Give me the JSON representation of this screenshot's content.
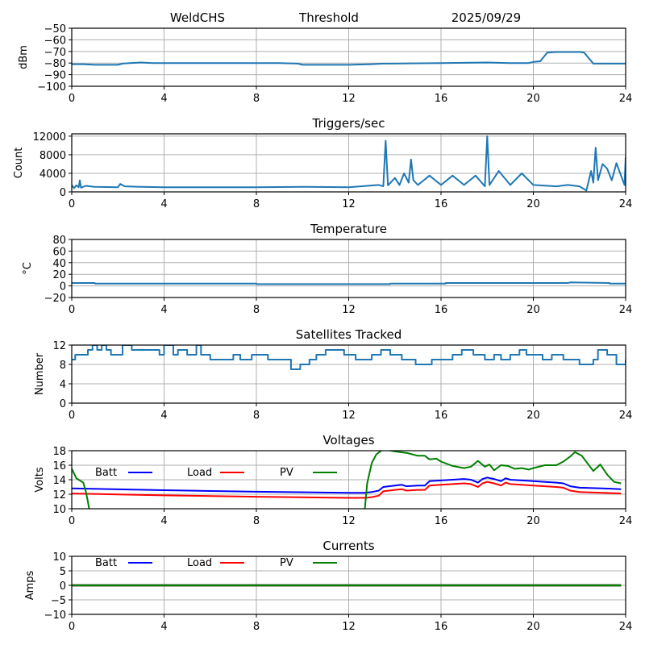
{
  "header": {
    "station": "WeldCHS",
    "mode": "Threshold",
    "date": "2025/09/29"
  },
  "colors": {
    "series_default": "#1f77b4",
    "batt": "#0000ff",
    "load": "#ff0000",
    "pv": "#008000"
  },
  "chart_data": [
    {
      "id": "signal",
      "type": "line",
      "title": "",
      "xlabel": "",
      "ylabel": "dBm",
      "xlim": [
        0,
        24
      ],
      "ylim": [
        -100,
        -50
      ],
      "xticks": [
        0,
        4,
        8,
        12,
        16,
        20,
        24
      ],
      "yticks": [
        -100,
        -90,
        -80,
        -70,
        -60,
        -50
      ],
      "ytick_labels": [
        "−100",
        "−90",
        "−80",
        "−70",
        "−60",
        "−50"
      ],
      "grid": true,
      "series": [
        {
          "name": "signal",
          "color": "#1f77b4",
          "x": [
            0,
            0.5,
            1,
            2,
            2.2,
            2.5,
            3,
            3.5,
            4,
            6,
            8,
            9,
            9.8,
            10,
            11,
            12,
            13,
            13.5,
            14,
            16,
            18,
            19,
            19.8,
            20,
            20.3,
            20.6,
            21,
            21.5,
            22,
            22.2,
            22.6,
            23,
            24
          ],
          "y": [
            -81,
            -81,
            -81.5,
            -81.5,
            -80.5,
            -80,
            -79.5,
            -80,
            -80,
            -80,
            -80,
            -80,
            -80.5,
            -81.5,
            -81.5,
            -81.5,
            -81,
            -80.5,
            -80.5,
            -80,
            -79.5,
            -80,
            -80,
            -79,
            -78.5,
            -71,
            -70.5,
            -70.5,
            -70.5,
            -71,
            -80.5,
            -80.5,
            -80.5
          ]
        }
      ]
    },
    {
      "id": "triggers",
      "type": "line",
      "title": "Triggers/sec",
      "xlabel": "",
      "ylabel": "Count",
      "xlim": [
        0,
        24
      ],
      "ylim": [
        0,
        12500
      ],
      "xticks": [
        0,
        4,
        8,
        12,
        16,
        20,
        24
      ],
      "yticks": [
        0,
        4000,
        8000,
        12000
      ],
      "grid": true,
      "series": [
        {
          "name": "triggers",
          "color": "#1f77b4",
          "x": [
            0,
            0.1,
            0.2,
            0.3,
            0.35,
            0.4,
            0.6,
            1,
            2,
            2.1,
            2.3,
            3,
            4,
            6,
            8,
            10,
            12,
            12.8,
            13.3,
            13.5,
            13.6,
            13.7,
            14,
            14.2,
            14.4,
            14.6,
            14.7,
            14.8,
            15,
            15.5,
            16,
            16.5,
            17,
            17.5,
            17.9,
            18,
            18.1,
            18.5,
            19,
            19.5,
            20,
            21,
            21.5,
            22,
            22.3,
            22.5,
            22.6,
            22.7,
            22.8,
            23,
            23.2,
            23.4,
            23.6,
            23.8,
            23.95,
            24
          ],
          "y": [
            1500,
            800,
            1400,
            1000,
            2500,
            900,
            1300,
            1100,
            1000,
            1700,
            1200,
            1100,
            1000,
            1000,
            1000,
            1100,
            1000,
            1300,
            1500,
            1200,
            11000,
            1400,
            3000,
            1500,
            4000,
            2000,
            7000,
            2500,
            1500,
            3500,
            1500,
            3500,
            1500,
            3500,
            1200,
            12000,
            1500,
            4500,
            1500,
            4000,
            1500,
            1200,
            1500,
            1200,
            300,
            4500,
            2000,
            9500,
            2500,
            6000,
            5000,
            2500,
            6200,
            3500,
            1500,
            7500
          ]
        }
      ]
    },
    {
      "id": "temperature",
      "type": "line",
      "title": "Temperature",
      "xlabel": "",
      "ylabel": "°C",
      "xlim": [
        0,
        24
      ],
      "ylim": [
        -20,
        80
      ],
      "xticks": [
        0,
        4,
        8,
        12,
        16,
        20,
        24
      ],
      "yticks": [
        -20,
        0,
        20,
        40,
        60,
        80
      ],
      "ytick_labels": [
        "−20",
        "0",
        "20",
        "40",
        "60",
        "80"
      ],
      "grid": true,
      "series": [
        {
          "name": "temperature",
          "color": "#1f77b4",
          "x": [
            0,
            1,
            1.01,
            8,
            8.01,
            13.8,
            13.81,
            16.2,
            16.21,
            21.5,
            21.6,
            23.3,
            23.31,
            24
          ],
          "y": [
            5,
            5,
            4,
            4,
            3,
            3,
            4,
            4,
            5,
            5,
            6,
            5,
            4,
            4
          ]
        }
      ]
    },
    {
      "id": "satellites",
      "type": "line",
      "title": "Satellites Tracked",
      "xlabel": "",
      "ylabel": "Number",
      "xlim": [
        0,
        24
      ],
      "ylim": [
        0,
        12
      ],
      "xticks": [
        0,
        4,
        8,
        12,
        16,
        20,
        24
      ],
      "yticks": [
        0,
        4,
        8,
        12
      ],
      "grid": true,
      "series": [
        {
          "name": "satellites",
          "color": "#1f77b4",
          "x": [
            0,
            0.15,
            0.4,
            0.7,
            0.9,
            1.1,
            1.3,
            1.5,
            1.7,
            2.2,
            2.6,
            3.4,
            3.8,
            4.0,
            4.4,
            4.6,
            4.8,
            5.0,
            5.4,
            5.6,
            6.0,
            6.6,
            7.0,
            7.3,
            7.8,
            8.2,
            8.5,
            9.0,
            9.5,
            9.9,
            10.3,
            10.6,
            11.0,
            11.8,
            12.3,
            12.6,
            13.0,
            13.4,
            13.8,
            14.3,
            14.9,
            15.3,
            15.6,
            16.0,
            16.5,
            16.9,
            17.4,
            17.9,
            18.3,
            18.6,
            19.0,
            19.4,
            19.7,
            20.0,
            20.4,
            20.8,
            21.3,
            21.6,
            22.0,
            22.6,
            22.8,
            23.2,
            23.6,
            24
          ],
          "y": [
            9,
            10,
            10,
            11,
            12,
            11,
            12,
            11,
            10,
            12,
            11,
            11,
            10,
            12,
            10,
            11,
            11,
            10,
            12,
            10,
            9,
            9,
            10,
            9,
            10,
            10,
            9,
            9,
            7,
            8,
            9,
            10,
            11,
            10,
            9,
            9,
            10,
            11,
            10,
            9,
            8,
            8,
            9,
            9,
            10,
            11,
            10,
            9,
            10,
            9,
            10,
            11,
            10,
            10,
            9,
            10,
            9,
            9,
            8,
            9,
            11,
            10,
            8,
            9
          ]
        }
      ]
    },
    {
      "id": "voltages",
      "type": "line",
      "title": "Voltages",
      "xlabel": "",
      "ylabel": "Volts",
      "xlim": [
        0,
        24
      ],
      "ylim": [
        10,
        18
      ],
      "xticks": [
        0,
        4,
        8,
        12,
        16,
        20,
        24
      ],
      "yticks": [
        10,
        12,
        14,
        16,
        18
      ],
      "grid": true,
      "legend": [
        "Batt",
        "Load",
        "PV"
      ],
      "legend_placement": "top-left-inline",
      "series": [
        {
          "name": "Batt",
          "color": "#0000ff",
          "x": [
            0,
            4,
            8,
            12,
            12.7,
            13,
            13.3,
            13.5,
            14,
            14.3,
            14.5,
            15,
            15.3,
            15.5,
            16,
            17,
            17.3,
            17.6,
            17.8,
            18,
            18.3,
            18.6,
            18.8,
            19,
            20,
            21,
            21.3,
            21.6,
            22,
            23,
            23.8
          ],
          "y": [
            12.8,
            12.55,
            12.35,
            12.2,
            12.2,
            12.3,
            12.5,
            13.0,
            13.2,
            13.3,
            13.1,
            13.2,
            13.2,
            13.8,
            13.9,
            14.1,
            14.0,
            13.6,
            14.1,
            14.3,
            14.1,
            13.8,
            14.2,
            14.0,
            13.8,
            13.6,
            13.5,
            13.1,
            12.9,
            12.8,
            12.7
          ]
        },
        {
          "name": "Load",
          "color": "#ff0000",
          "x": [
            0,
            4,
            8,
            12,
            12.7,
            13,
            13.3,
            13.5,
            14,
            14.3,
            14.5,
            15,
            15.3,
            15.5,
            16,
            17,
            17.3,
            17.6,
            17.8,
            18,
            18.3,
            18.6,
            18.8,
            19,
            20,
            21,
            21.3,
            21.6,
            22,
            23,
            23.8
          ],
          "y": [
            12.1,
            11.85,
            11.65,
            11.5,
            11.5,
            11.6,
            11.8,
            12.4,
            12.6,
            12.7,
            12.5,
            12.6,
            12.6,
            13.2,
            13.3,
            13.5,
            13.4,
            13.0,
            13.5,
            13.7,
            13.5,
            13.2,
            13.6,
            13.4,
            13.2,
            13.0,
            12.9,
            12.5,
            12.3,
            12.2,
            12.1
          ]
        },
        {
          "name": "PV",
          "color": "#008000",
          "segments": [
            {
              "x": [
                0,
                0.2,
                0.5,
                0.6,
                0.7,
                0.75
              ],
              "y": [
                15.5,
                14.2,
                13.6,
                12.5,
                11,
                10
              ]
            },
            {
              "x": [
                12.7,
                12.8,
                13.0,
                13.2,
                13.5,
                14,
                14.5,
                15,
                15.3,
                15.5,
                15.8,
                16,
                16.5,
                17,
                17.3,
                17.6,
                17.9,
                18.1,
                18.3,
                18.6,
                18.9,
                19.2,
                19.5,
                19.8,
                20,
                20.5,
                21,
                21.3,
                21.6,
                21.8,
                22.1,
                22.6,
                22.9,
                23.2,
                23.5,
                23.8
              ],
              "y": [
                10,
                13.5,
                16.3,
                17.5,
                18.2,
                17.9,
                17.7,
                17.3,
                17.3,
                16.8,
                16.9,
                16.5,
                15.9,
                15.6,
                15.8,
                16.6,
                15.8,
                16.1,
                15.3,
                16.0,
                15.9,
                15.5,
                15.6,
                15.4,
                15.6,
                16.0,
                16.0,
                16.5,
                17.2,
                17.8,
                17.3,
                15.2,
                16.1,
                14.7,
                13.7,
                13.5
              ]
            }
          ]
        }
      ]
    },
    {
      "id": "currents",
      "type": "line",
      "title": "Currents",
      "xlabel": "",
      "ylabel": "Amps",
      "xlim": [
        0,
        24
      ],
      "ylim": [
        -10,
        10
      ],
      "xticks": [
        0,
        4,
        8,
        12,
        16,
        20,
        24
      ],
      "yticks": [
        -10,
        -5,
        0,
        5,
        10
      ],
      "ytick_labels": [
        "−10",
        "−5",
        "0",
        "5",
        "10"
      ],
      "grid": true,
      "legend": [
        "Batt",
        "Load",
        "PV"
      ],
      "legend_placement": "top-left-inline",
      "series": [
        {
          "name": "Batt",
          "color": "#0000ff",
          "x": [
            0,
            23.8
          ],
          "y": [
            0,
            0
          ]
        },
        {
          "name": "Load",
          "color": "#ff0000",
          "x": [
            0,
            23.8
          ],
          "y": [
            0,
            0
          ]
        },
        {
          "name": "PV",
          "color": "#008000",
          "x": [
            0,
            23.8
          ],
          "y": [
            0,
            0
          ]
        }
      ]
    }
  ]
}
